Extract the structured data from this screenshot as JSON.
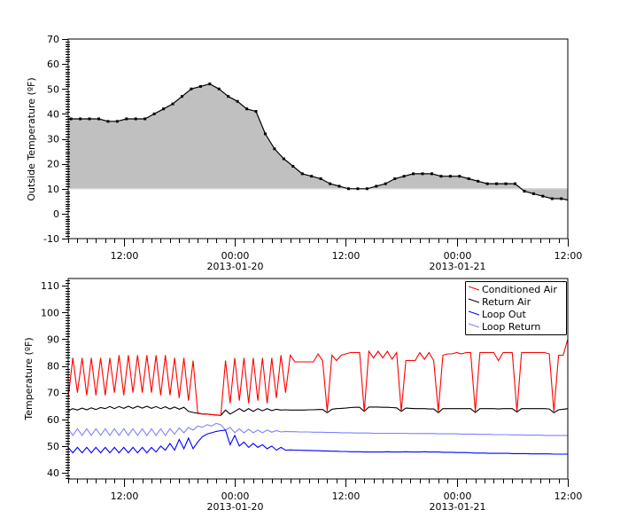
{
  "chart_data": [
    {
      "type": "area",
      "title": "",
      "xlabel": "",
      "ylabel": "Outside Temperature (ºF)",
      "xlim": [
        "2013-01-19 06:00",
        "2013-01-21 12:00"
      ],
      "ylim": [
        -10,
        70
      ],
      "yticks": [
        -10,
        0,
        10,
        20,
        30,
        40,
        50,
        60,
        70
      ],
      "xticks": [
        {
          "t": "2013-01-19 12:00",
          "label": "12:00",
          "date": ""
        },
        {
          "t": "2013-01-20 00:00",
          "label": "00:00",
          "date": "2013-01-20"
        },
        {
          "t": "2013-01-20 12:00",
          "label": "12:00",
          "date": ""
        },
        {
          "t": "2013-01-21 00:00",
          "label": "00:00",
          "date": "2013-01-21"
        },
        {
          "t": "2013-01-21 12:00",
          "label": "12:00",
          "date": ""
        }
      ],
      "grid": false,
      "fill_baseline": 10,
      "fill_color": "#c0c0c0",
      "line_color": "#000000",
      "markers": true,
      "x": [
        "2013-01-19 06:18",
        "2013-01-19 07:18",
        "2013-01-19 08:18",
        "2013-01-19 09:18",
        "2013-01-19 10:18",
        "2013-01-19 11:18",
        "2013-01-19 12:18",
        "2013-01-19 13:18",
        "2013-01-19 14:18",
        "2013-01-19 15:18",
        "2013-01-19 16:18",
        "2013-01-19 17:18",
        "2013-01-19 18:18",
        "2013-01-19 19:18",
        "2013-01-19 20:18",
        "2013-01-19 21:18",
        "2013-01-19 22:18",
        "2013-01-19 23:18",
        "2013-01-20 00:18",
        "2013-01-20 01:18",
        "2013-01-20 02:18",
        "2013-01-20 03:18",
        "2013-01-20 04:18",
        "2013-01-20 05:18",
        "2013-01-20 06:18",
        "2013-01-20 07:18",
        "2013-01-20 08:18",
        "2013-01-20 09:18",
        "2013-01-20 10:18",
        "2013-01-20 11:18",
        "2013-01-20 12:18",
        "2013-01-20 13:18",
        "2013-01-20 14:18",
        "2013-01-20 15:18",
        "2013-01-20 16:18",
        "2013-01-20 17:18",
        "2013-01-20 18:18",
        "2013-01-20 19:18",
        "2013-01-20 20:18",
        "2013-01-20 21:18",
        "2013-01-20 22:18",
        "2013-01-20 23:18",
        "2013-01-21 00:18",
        "2013-01-21 01:18",
        "2013-01-21 02:18",
        "2013-01-21 03:18",
        "2013-01-21 04:18",
        "2013-01-21 05:18",
        "2013-01-21 06:18",
        "2013-01-21 07:18",
        "2013-01-21 08:18",
        "2013-01-21 09:18",
        "2013-01-21 10:18",
        "2013-01-21 11:18"
      ],
      "y": [
        38,
        38,
        38,
        38,
        37,
        37,
        38,
        38,
        38,
        40,
        42,
        44,
        47,
        50,
        51,
        52,
        50,
        47,
        45,
        42,
        41,
        32,
        26,
        22,
        19,
        16,
        15,
        14,
        12,
        11,
        10,
        10,
        10,
        11,
        12,
        14,
        15,
        16,
        16,
        16,
        15,
        15,
        15,
        14,
        13,
        12,
        12,
        12,
        12,
        9,
        8,
        7,
        6,
        6
      ]
    },
    {
      "type": "line",
      "title": "",
      "xlabel": "",
      "ylabel": "Temperature (ºF)",
      "xlim": [
        "2013-01-19 06:00",
        "2013-01-21 12:00"
      ],
      "ylim": [
        37.7,
        112.7
      ],
      "yticks": [
        40,
        50,
        60,
        70,
        80,
        90,
        100,
        110
      ],
      "xticks": [
        {
          "t": "2013-01-19 12:00",
          "label": "12:00",
          "date": ""
        },
        {
          "t": "2013-01-20 00:00",
          "label": "00:00",
          "date": "2013-01-20"
        },
        {
          "t": "2013-01-20 12:00",
          "label": "12:00",
          "date": ""
        },
        {
          "t": "2013-01-21 00:00",
          "label": "00:00",
          "date": "2013-01-21"
        },
        {
          "t": "2013-01-21 12:00",
          "label": "12:00",
          "date": ""
        }
      ],
      "grid": false,
      "legend": "top-right",
      "x": [
        "2013-01-19 06:00",
        "2013-01-19 06:30",
        "2013-01-19 07:00",
        "2013-01-19 07:30",
        "2013-01-19 08:00",
        "2013-01-19 08:30",
        "2013-01-19 09:00",
        "2013-01-19 09:30",
        "2013-01-19 10:00",
        "2013-01-19 10:30",
        "2013-01-19 11:00",
        "2013-01-19 11:30",
        "2013-01-19 12:00",
        "2013-01-19 12:30",
        "2013-01-19 13:00",
        "2013-01-19 13:30",
        "2013-01-19 14:00",
        "2013-01-19 14:30",
        "2013-01-19 15:00",
        "2013-01-19 15:30",
        "2013-01-19 16:00",
        "2013-01-19 16:30",
        "2013-01-19 17:00",
        "2013-01-19 17:30",
        "2013-01-19 18:00",
        "2013-01-19 18:30",
        "2013-01-19 19:00",
        "2013-01-19 19:30",
        "2013-01-19 20:00",
        "2013-01-19 20:30",
        "2013-01-19 21:00",
        "2013-01-19 21:30",
        "2013-01-19 22:00",
        "2013-01-19 22:30",
        "2013-01-19 23:00",
        "2013-01-19 23:30",
        "2013-01-20 00:00",
        "2013-01-20 00:30",
        "2013-01-20 01:00",
        "2013-01-20 01:30",
        "2013-01-20 02:00",
        "2013-01-20 02:30",
        "2013-01-20 03:00",
        "2013-01-20 03:30",
        "2013-01-20 04:00",
        "2013-01-20 04:30",
        "2013-01-20 05:00",
        "2013-01-20 05:30",
        "2013-01-20 06:00",
        "2013-01-20 06:30",
        "2013-01-20 07:00",
        "2013-01-20 07:30",
        "2013-01-20 08:00",
        "2013-01-20 08:30",
        "2013-01-20 09:00",
        "2013-01-20 09:30",
        "2013-01-20 10:00",
        "2013-01-20 10:30",
        "2013-01-20 11:00",
        "2013-01-20 11:30",
        "2013-01-20 12:00",
        "2013-01-20 12:30",
        "2013-01-20 13:00",
        "2013-01-20 13:30",
        "2013-01-20 14:00",
        "2013-01-20 14:30",
        "2013-01-20 15:00",
        "2013-01-20 15:30",
        "2013-01-20 16:00",
        "2013-01-20 16:30",
        "2013-01-20 17:00",
        "2013-01-20 17:30",
        "2013-01-20 18:00",
        "2013-01-20 18:30",
        "2013-01-20 19:00",
        "2013-01-20 19:30",
        "2013-01-20 20:00",
        "2013-01-20 20:30",
        "2013-01-20 21:00",
        "2013-01-20 21:30",
        "2013-01-20 22:00",
        "2013-01-20 22:30",
        "2013-01-20 23:00",
        "2013-01-20 23:30",
        "2013-01-21 00:00",
        "2013-01-21 00:30",
        "2013-01-21 01:00",
        "2013-01-21 01:30",
        "2013-01-21 02:00",
        "2013-01-21 02:30",
        "2013-01-21 03:00",
        "2013-01-21 03:30",
        "2013-01-21 04:00",
        "2013-01-21 04:30",
        "2013-01-21 05:00",
        "2013-01-21 05:30",
        "2013-01-21 06:00",
        "2013-01-21 06:30",
        "2013-01-21 07:00",
        "2013-01-21 07:30",
        "2013-01-21 08:00",
        "2013-01-21 08:30",
        "2013-01-21 09:00",
        "2013-01-21 09:30",
        "2013-01-21 10:00",
        "2013-01-21 10:30",
        "2013-01-21 11:00",
        "2013-01-21 11:30",
        "2013-01-21 12:00"
      ],
      "series": [
        {
          "name": "Conditioned Air",
          "color": "#ff0000",
          "values": [
            68,
            83,
            70,
            83,
            69,
            83,
            69,
            83,
            69,
            83,
            70,
            84,
            69,
            84,
            70,
            84,
            70,
            84,
            70,
            84,
            69,
            84,
            69,
            83,
            68,
            83,
            67,
            82,
            62.5,
            62,
            62,
            61.8,
            61.7,
            61.5,
            82,
            66,
            83,
            67,
            83,
            66,
            83,
            67,
            83,
            66,
            83,
            68,
            84,
            70,
            84,
            81.5,
            81.5,
            81.5,
            81.5,
            81.5,
            84.5,
            82,
            63,
            84,
            82,
            84,
            84.5,
            85,
            85,
            85,
            63,
            85.5,
            83,
            85.5,
            83,
            85.5,
            82.5,
            85,
            63,
            82,
            82,
            82,
            85,
            82.5,
            85,
            82,
            63,
            84,
            84.5,
            84.5,
            85,
            84.5,
            85,
            85,
            63,
            85,
            85,
            85,
            85,
            82,
            85,
            85,
            85,
            63,
            85,
            85,
            85,
            85,
            85,
            85,
            84.5,
            63,
            84,
            84,
            90
          ]
        },
        {
          "name": "Return Air",
          "color": "#000000",
          "values": [
            63.2,
            64,
            63.5,
            64.2,
            63.6,
            64.3,
            63.7,
            64.4,
            64,
            64.8,
            64,
            64.8,
            64.1,
            64.9,
            64.1,
            64.9,
            64.2,
            64.9,
            64.1,
            64.8,
            64,
            64.7,
            63.9,
            64.6,
            63.8,
            64.5,
            63,
            62.6,
            62.3,
            62,
            62,
            61.8,
            61.6,
            61.5,
            63.5,
            62,
            63,
            64,
            63,
            64,
            63,
            64,
            63.2,
            64,
            63.3,
            63.8,
            63.5,
            63.6,
            63.5,
            63.5,
            63.5,
            63.5,
            63.6,
            63.6,
            63.7,
            63.7,
            62.5,
            63.8,
            64,
            64.1,
            64.2,
            64.4,
            64.5,
            64.5,
            63,
            64.6,
            64.6,
            64.6,
            64.5,
            64.5,
            64.4,
            64.3,
            63,
            64.2,
            64.1,
            64,
            64,
            64,
            63.9,
            63.9,
            62.5,
            64,
            64,
            64,
            64,
            64,
            64,
            64,
            62.6,
            64,
            64,
            64,
            64,
            63.9,
            64,
            64,
            64,
            62.8,
            64,
            64,
            64,
            64,
            64,
            64,
            63.9,
            62.5,
            63.6,
            63.8,
            64
          ]
        },
        {
          "name": "Loop Out",
          "color": "#0000ff",
          "values": [
            49.5,
            47.5,
            49.5,
            47.5,
            49.5,
            47.5,
            49.5,
            47.5,
            49.5,
            47.5,
            49.5,
            47.5,
            49.5,
            47.5,
            49.5,
            47.5,
            49.5,
            47.5,
            49.5,
            47.8,
            50,
            48.5,
            51,
            48.5,
            52.5,
            49,
            53,
            49,
            51.5,
            53.5,
            54.5,
            55,
            55.5,
            55.8,
            56,
            50.5,
            54,
            50,
            51.5,
            49.5,
            51,
            49.5,
            50.5,
            49,
            50,
            48.5,
            49.5,
            48.5,
            48.6,
            48.5,
            48.5,
            48.4,
            48.4,
            48.3,
            48.3,
            48.2,
            48.2,
            48.1,
            48.1,
            48,
            48,
            47.9,
            47.9,
            47.9,
            47.8,
            47.8,
            47.8,
            47.8,
            47.8,
            47.9,
            47.8,
            47.8,
            47.8,
            47.9,
            47.8,
            47.8,
            47.8,
            47.9,
            47.8,
            47.8,
            47.8,
            47.7,
            47.7,
            47.7,
            47.6,
            47.6,
            47.6,
            47.5,
            47.4,
            47.4,
            47.4,
            47.3,
            47.3,
            47.3,
            47.3,
            47.3,
            47.2,
            47.2,
            47.2,
            47.2,
            47.1,
            47.1,
            47.1,
            47.1,
            47.1,
            47,
            47,
            47,
            47
          ]
        },
        {
          "name": "Loop Return",
          "color": "#8080ff",
          "values": [
            56.5,
            54,
            56.5,
            54,
            56.5,
            54,
            56.5,
            54,
            56.5,
            54,
            56.5,
            54,
            56.5,
            54,
            56.5,
            54,
            56.5,
            54,
            56.5,
            54,
            56.5,
            54,
            56.5,
            54.5,
            56.8,
            55,
            57,
            56,
            57.5,
            57,
            58,
            57.5,
            58.5,
            58,
            56,
            57,
            55,
            56.5,
            55,
            56.3,
            55,
            56,
            55,
            56,
            55.2,
            55.8,
            55.3,
            55.5,
            55.4,
            55.4,
            55.3,
            55.3,
            55.3,
            55.2,
            55.2,
            55.2,
            55.1,
            55.1,
            55.1,
            55,
            55,
            55,
            54.9,
            54.9,
            54.9,
            54.9,
            54.8,
            54.8,
            54.8,
            54.8,
            54.8,
            54.8,
            54.8,
            54.8,
            54.7,
            54.7,
            54.7,
            54.7,
            54.7,
            54.7,
            54.6,
            54.6,
            54.6,
            54.6,
            54.6,
            54.5,
            54.5,
            54.5,
            54.5,
            54.4,
            54.4,
            54.4,
            54.3,
            54.3,
            54.3,
            54.3,
            54.2,
            54.2,
            54.2,
            54.1,
            54.1,
            54.1,
            54.1,
            54,
            54,
            54,
            54,
            54,
            54
          ]
        }
      ]
    }
  ]
}
